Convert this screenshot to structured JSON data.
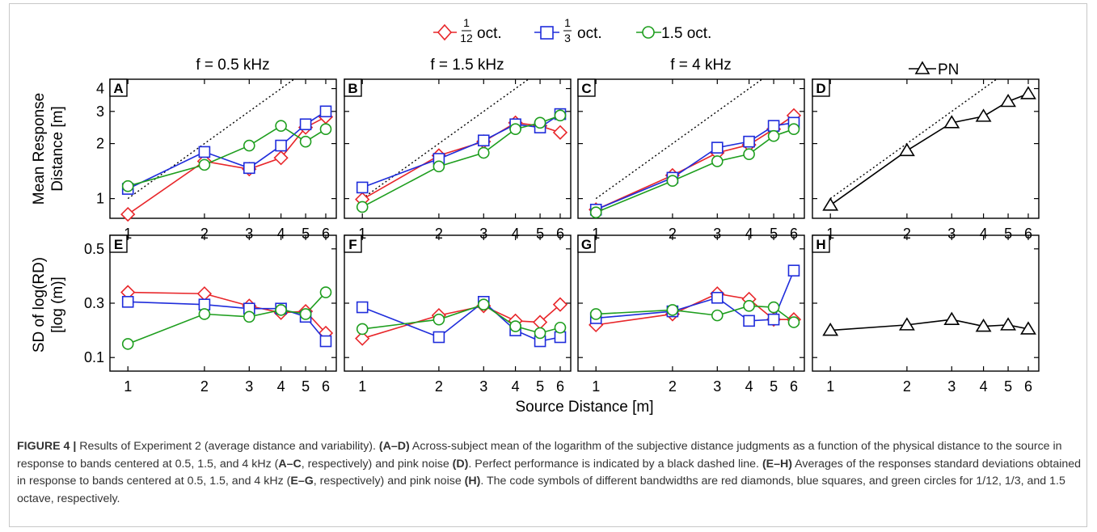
{
  "figure": {
    "legend": {
      "entries": [
        {
          "num": "1",
          "den": "12",
          "suffix": "oct.",
          "color": "#e8262a",
          "marker": "diamond"
        },
        {
          "num": "1",
          "den": "3",
          "suffix": "oct.",
          "color": "#1f2ddb",
          "marker": "square"
        },
        {
          "text": "1.5 oct.",
          "color": "#1e9e1e",
          "marker": "circle"
        }
      ]
    },
    "column_titles": [
      "f = 0.5 kHz",
      "f = 1.5 kHz",
      "f = 4 kHz"
    ],
    "pn_legend": {
      "text": "PN",
      "color": "#000000",
      "marker": "triangle"
    },
    "y_label_top": [
      "Mean Response",
      "Distance [m]"
    ],
    "y_label_bottom": [
      "SD of log(RD)",
      "[log (m)]"
    ],
    "x_label": "Source Distance [m]",
    "caption": {
      "label": "FIGURE 4 |",
      "parts": [
        {
          "t": " Results of Experiment 2 (average distance and variability). ",
          "b": false
        },
        {
          "t": " (A–D)",
          "b": true
        },
        {
          "t": " Across-subject mean of the logarithm of the subjective distance judgments as a function of the physical distance to the source in response to bands centered at 0.5, 1.5, and 4 kHz (",
          "b": false
        },
        {
          "t": "A–C",
          "b": true
        },
        {
          "t": ", respectively) and pink noise ",
          "b": false
        },
        {
          "t": "(D)",
          "b": true
        },
        {
          "t": ". Perfect performance is indicated by a black dashed line. ",
          "b": false
        },
        {
          "t": "(E–H)",
          "b": true
        },
        {
          "t": " Averages of the responses standard deviations obtained in response to bands centered at 0.5, 1.5, and 4 kHz (",
          "b": false
        },
        {
          "t": "E–G",
          "b": true
        },
        {
          "t": ", respectively) and pink noise ",
          "b": false
        },
        {
          "t": "(H)",
          "b": true
        },
        {
          "t": ". The code symbols of different bandwidths are red diamonds, blue squares, and green circles for 1/12, 1/3, and 1.5 octave, respectively.",
          "b": false
        }
      ]
    }
  },
  "chart_data": [
    {
      "panel": "A",
      "type": "line",
      "x": [
        1,
        2,
        3,
        4,
        5,
        6
      ],
      "xscale": "log",
      "yscale": "log",
      "ylim": [
        0.78,
        4.5
      ],
      "yticks": [
        "1",
        "2",
        "3",
        "4"
      ],
      "xticks": [
        "1",
        "2",
        "3",
        "4",
        "5",
        "6"
      ],
      "reference_line": "y = x (dashed)",
      "series": [
        {
          "name": "1/12 oct.",
          "color": "#e8262a",
          "marker": "diamond",
          "values": [
            0.82,
            1.6,
            1.45,
            1.67,
            2.45,
            2.8
          ]
        },
        {
          "name": "1/3 oct.",
          "color": "#1f2ddb",
          "marker": "square",
          "values": [
            1.13,
            1.8,
            1.47,
            1.95,
            2.55,
            3.0
          ]
        },
        {
          "name": "1.5 oct.",
          "color": "#1e9e1e",
          "marker": "circle",
          "values": [
            1.17,
            1.53,
            1.95,
            2.5,
            2.05,
            2.4
          ]
        }
      ]
    },
    {
      "panel": "B",
      "type": "line",
      "x": [
        1,
        2,
        3,
        4,
        5,
        6
      ],
      "xscale": "log",
      "yscale": "log",
      "ylim": [
        0.78,
        4.5
      ],
      "yticks": [
        "1",
        "2",
        "3",
        "4"
      ],
      "xticks": [
        "1",
        "2",
        "3",
        "4",
        "5",
        "6"
      ],
      "reference_line": "y = x (dashed)",
      "series": [
        {
          "name": "1/12 oct.",
          "color": "#e8262a",
          "marker": "diamond",
          "values": [
            0.99,
            1.72,
            2.05,
            2.6,
            2.5,
            2.3
          ]
        },
        {
          "name": "1/3 oct.",
          "color": "#1f2ddb",
          "marker": "square",
          "values": [
            1.15,
            1.65,
            2.08,
            2.55,
            2.45,
            2.9
          ]
        },
        {
          "name": "1.5 oct.",
          "color": "#1e9e1e",
          "marker": "circle",
          "values": [
            0.9,
            1.5,
            1.78,
            2.4,
            2.6,
            2.85
          ]
        }
      ]
    },
    {
      "panel": "C",
      "type": "line",
      "x": [
        1,
        2,
        3,
        4,
        5,
        6
      ],
      "xscale": "log",
      "yscale": "log",
      "ylim": [
        0.78,
        4.5
      ],
      "yticks": [
        "1",
        "2",
        "3",
        "4"
      ],
      "xticks": [
        "1",
        "2",
        "3",
        "4",
        "5",
        "6"
      ],
      "reference_line": "y = x (dashed)",
      "series": [
        {
          "name": "1/12 oct.",
          "color": "#e8262a",
          "marker": "diamond",
          "values": [
            0.87,
            1.34,
            1.78,
            1.97,
            2.4,
            2.85
          ]
        },
        {
          "name": "1/3 oct.",
          "color": "#1f2ddb",
          "marker": "square",
          "values": [
            0.87,
            1.3,
            1.9,
            2.05,
            2.5,
            2.6
          ]
        },
        {
          "name": "1.5 oct.",
          "color": "#1e9e1e",
          "marker": "circle",
          "values": [
            0.84,
            1.25,
            1.6,
            1.75,
            2.2,
            2.4
          ]
        }
      ]
    },
    {
      "panel": "D",
      "type": "line",
      "x": [
        1,
        2,
        3,
        4,
        5,
        6
      ],
      "xscale": "log",
      "yscale": "log",
      "ylim": [
        0.78,
        4.5
      ],
      "yticks": [
        "1",
        "2",
        "3",
        "4"
      ],
      "xticks": [
        "1",
        "2",
        "3",
        "4",
        "5",
        "6"
      ],
      "reference_line": "y = x (dashed)",
      "series": [
        {
          "name": "PN",
          "color": "#000000",
          "marker": "triangle",
          "values": [
            0.92,
            1.83,
            2.6,
            2.82,
            3.4,
            3.75
          ]
        }
      ]
    },
    {
      "panel": "E",
      "type": "line",
      "x": [
        1,
        2,
        3,
        4,
        5,
        6
      ],
      "xscale": "log",
      "ylim": [
        0.05,
        0.55
      ],
      "yticks": [
        "0.1",
        "0.3",
        "0.5"
      ],
      "xticks": [
        "1",
        "2",
        "3",
        "4",
        "5",
        "6"
      ],
      "series": [
        {
          "name": "1/12 oct.",
          "color": "#e8262a",
          "marker": "diamond",
          "values": [
            0.34,
            0.335,
            0.29,
            0.265,
            0.27,
            0.19
          ]
        },
        {
          "name": "1/3 oct.",
          "color": "#1f2ddb",
          "marker": "square",
          "values": [
            0.305,
            0.295,
            0.28,
            0.28,
            0.25,
            0.16
          ]
        },
        {
          "name": "1.5 oct.",
          "color": "#1e9e1e",
          "marker": "circle",
          "values": [
            0.15,
            0.26,
            0.25,
            0.275,
            0.26,
            0.34
          ]
        }
      ]
    },
    {
      "panel": "F",
      "type": "line",
      "x": [
        1,
        2,
        3,
        4,
        5,
        6
      ],
      "xscale": "log",
      "ylim": [
        0.05,
        0.55
      ],
      "yticks": [
        "0.1",
        "0.3",
        "0.5"
      ],
      "xticks": [
        "1",
        "2",
        "3",
        "4",
        "5",
        "6"
      ],
      "series": [
        {
          "name": "1/12 oct.",
          "color": "#e8262a",
          "marker": "diamond",
          "values": [
            0.17,
            0.255,
            0.29,
            0.235,
            0.23,
            0.295
          ]
        },
        {
          "name": "1/3 oct.",
          "color": "#1f2ddb",
          "marker": "square",
          "values": [
            0.285,
            0.175,
            0.305,
            0.2,
            0.16,
            0.175
          ]
        },
        {
          "name": "1.5 oct.",
          "color": "#1e9e1e",
          "marker": "circle",
          "values": [
            0.205,
            0.24,
            0.295,
            0.215,
            0.19,
            0.21
          ]
        }
      ]
    },
    {
      "panel": "G",
      "type": "line",
      "x": [
        1,
        2,
        3,
        4,
        5,
        6
      ],
      "xscale": "log",
      "ylim": [
        0.05,
        0.55
      ],
      "yticks": [
        "0.1",
        "0.3",
        "0.5"
      ],
      "xticks": [
        "1",
        "2",
        "3",
        "4",
        "5",
        "6"
      ],
      "series": [
        {
          "name": "1/12 oct.",
          "color": "#e8262a",
          "marker": "diamond",
          "values": [
            0.22,
            0.26,
            0.335,
            0.315,
            0.24,
            0.24
          ]
        },
        {
          "name": "1/3 oct.",
          "color": "#1f2ddb",
          "marker": "square",
          "values": [
            0.245,
            0.27,
            0.32,
            0.235,
            0.24,
            0.42
          ]
        },
        {
          "name": "1.5 oct.",
          "color": "#1e9e1e",
          "marker": "circle",
          "values": [
            0.26,
            0.275,
            0.255,
            0.29,
            0.285,
            0.23
          ]
        }
      ]
    },
    {
      "panel": "H",
      "type": "line",
      "x": [
        1,
        2,
        3,
        4,
        5,
        6
      ],
      "xscale": "log",
      "ylim": [
        0.05,
        0.55
      ],
      "yticks": [
        "0.1",
        "0.3",
        "0.5"
      ],
      "xticks": [
        "1",
        "2",
        "3",
        "4",
        "5",
        "6"
      ],
      "series": [
        {
          "name": "PN",
          "color": "#000000",
          "marker": "triangle",
          "values": [
            0.2,
            0.22,
            0.24,
            0.215,
            0.22,
            0.205
          ]
        }
      ]
    }
  ]
}
